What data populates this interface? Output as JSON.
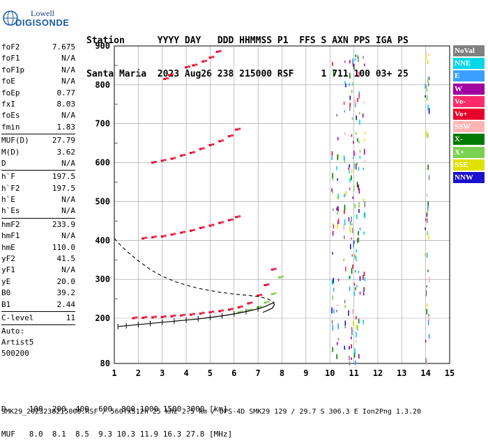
{
  "logo": {
    "line1": "Lowell",
    "line2": "DIGISONDE"
  },
  "header": {
    "line1": "Station      YYYY DAY   DDD HHMMSS P1  FFS S AXN PPS IGA PS",
    "line2": "Santa Maria  2023 Aug26 238 215000 RSF     1 711 100 03+ 25"
  },
  "params": {
    "group1": [
      {
        "name": "foF2",
        "value": "7.675"
      },
      {
        "name": "foF1",
        "value": "N/A"
      },
      {
        "name": "foF1p",
        "value": "N/A"
      },
      {
        "name": "foE",
        "value": "N/A"
      },
      {
        "name": "foEp",
        "value": "0.77"
      },
      {
        "name": "fxI",
        "value": "8.03"
      },
      {
        "name": "foEs",
        "value": "N/A"
      },
      {
        "name": "fmin",
        "value": "1.83"
      }
    ],
    "group2": [
      {
        "name": "MUF(D)",
        "value": "27.79"
      },
      {
        "name": "M(D)",
        "value": "3.62"
      },
      {
        "name": "D",
        "value": "N/A"
      }
    ],
    "group3": [
      {
        "name": "h`F",
        "value": "197.5"
      },
      {
        "name": "h`F2",
        "value": "197.5"
      },
      {
        "name": "h`E",
        "value": "N/A"
      },
      {
        "name": "h`Es",
        "value": "N/A"
      }
    ],
    "group4": [
      {
        "name": "hmF2",
        "value": "233.9"
      },
      {
        "name": "hmF1",
        "value": "N/A"
      },
      {
        "name": "hmE",
        "value": "110.0"
      },
      {
        "name": "yF2",
        "value": "41.5"
      },
      {
        "name": "yF1",
        "value": "N/A"
      },
      {
        "name": "yE",
        "value": "20.0"
      },
      {
        "name": "B0",
        "value": "39.2"
      },
      {
        "name": "B1",
        "value": "2.44"
      }
    ],
    "group5": [
      {
        "name": "C-level",
        "value": "11"
      }
    ]
  },
  "auto": {
    "line1": "Auto:",
    "line2": "Artist5",
    "line3": "500200"
  },
  "legend": [
    {
      "label": "NoVal",
      "color": "#808080"
    },
    {
      "label": "NNE",
      "color": "#00d8e8"
    },
    {
      "label": "E",
      "color": "#3aa0ff"
    },
    {
      "label": "W",
      "color": "#a000a0"
    },
    {
      "label": "Vo-",
      "color": "#ff2a6a"
    },
    {
      "label": "Vo+",
      "color": "#e8002a"
    },
    {
      "label": "SSW",
      "color": "#ffb4b4"
    },
    {
      "label": "X-",
      "color": "#007a00"
    },
    {
      "label": "X+",
      "color": "#7ad050"
    },
    {
      "label": "SSE",
      "color": "#e0e000"
    },
    {
      "label": "NNW",
      "color": "#1a10d0"
    }
  ],
  "bottom": {
    "line1": "D     100  200  400  600  800 1000 1500 3000 [km]",
    "line2": "MUF   8.0  8.1  8.5  9.3 10.3 11.9 16.3 27.8 [MHz]"
  },
  "footer": "SMK29_2023238215000.RSF / 560fx512h 25 kHz 2.5 km / DPS-4D SMK29 129 / 29.7 S 306.3 E Ion2Png 1.3.20",
  "chart_data": {
    "type": "scatter",
    "title": "",
    "xlabel": "",
    "ylabel": "",
    "xlim": [
      1,
      15
    ],
    "ylim": [
      80,
      900
    ],
    "x_ticks": [
      1,
      2,
      3,
      4,
      5,
      6,
      7,
      8,
      9,
      10,
      11,
      12,
      13,
      14,
      15
    ],
    "y_ticks": [
      80,
      200,
      300,
      400,
      500,
      600,
      700,
      800,
      900
    ],
    "grid": true,
    "series": [
      {
        "name": "O-trace 1-hop",
        "color": "#e8002a",
        "x": [
          1.8,
          2.2,
          2.6,
          3.0,
          3.4,
          3.8,
          4.2,
          4.6,
          5.0,
          5.4,
          5.8,
          6.2,
          6.6,
          7.0,
          7.3,
          7.6
        ],
        "y": [
          200,
          201,
          202,
          203,
          205,
          207,
          209,
          212,
          215,
          218,
          222,
          228,
          238,
          258,
          285,
          325
        ]
      },
      {
        "name": "X-trace 1-hop",
        "color": "#7ad050",
        "x": [
          6.2,
          6.6,
          7.0,
          7.3,
          7.6,
          7.9
        ],
        "y": [
          215,
          220,
          228,
          240,
          262,
          305
        ]
      },
      {
        "name": "O-trace 2-hop",
        "color": "#e8002a",
        "x": [
          2.2,
          2.6,
          3.0,
          3.4,
          3.8,
          4.2,
          4.6,
          5.0,
          5.4,
          5.8,
          6.1
        ],
        "y": [
          405,
          408,
          410,
          415,
          420,
          425,
          432,
          438,
          445,
          452,
          460
        ]
      },
      {
        "name": "O-trace 3-hop",
        "color": "#e8002a",
        "x": [
          2.6,
          3.0,
          3.4,
          3.8,
          4.2,
          4.6,
          5.0,
          5.4,
          5.8,
          6.1
        ],
        "y": [
          600,
          605,
          610,
          618,
          625,
          635,
          645,
          655,
          668,
          685
        ]
      },
      {
        "name": "O-trace 4-hop",
        "color": "#e8002a",
        "x": [
          3.1,
          3.3,
          4.0,
          4.3,
          4.7,
          5.0,
          5.3
        ],
        "y": [
          815,
          825,
          845,
          850,
          860,
          870,
          885
        ]
      }
    ],
    "profile_solid": {
      "x": [
        1.15,
        1.5,
        2.0,
        2.5,
        3.0,
        3.5,
        4.0,
        4.5,
        5.0,
        5.5,
        6.0,
        6.5,
        7.0,
        7.3,
        7.5,
        7.65,
        7.68,
        7.6,
        7.4,
        7.2
      ],
      "y": [
        178,
        180,
        183,
        186,
        189,
        192,
        195,
        198,
        202,
        206,
        211,
        217,
        224,
        230,
        236,
        240,
        234,
        226,
        220,
        215
      ]
    },
    "profile_dashed": {
      "x": [
        1.0,
        1.3,
        1.6,
        2.0,
        2.5,
        3.0,
        3.5,
        4.0,
        4.5,
        5.0,
        5.5,
        6.0,
        6.5,
        7.0,
        7.4,
        7.68
      ],
      "y": [
        405,
        385,
        368,
        348,
        325,
        308,
        295,
        285,
        277,
        271,
        266,
        262,
        259,
        256,
        250,
        240
      ]
    },
    "interference_columns": [
      10.1,
      10.3,
      10.6,
      10.8,
      10.9,
      11.0,
      11.1,
      11.2,
      11.4,
      14.0,
      14.1
    ]
  }
}
